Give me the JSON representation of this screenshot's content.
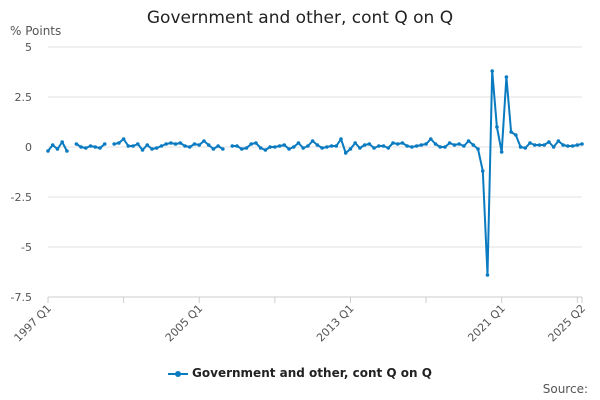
{
  "chart_data": {
    "type": "line",
    "title": "Government and other, cont Q on Q",
    "ylabel": "% Points",
    "xlabel": "",
    "x_start": "1997 Q1",
    "x_end": "2025 Q2",
    "frequency": "quarterly",
    "x_tick_labels": [
      "1997 Q1",
      "2005 Q1",
      "2013 Q1",
      "2021 Q1",
      "2025 Q2"
    ],
    "y_tick_labels": [
      "5",
      "2.5",
      "0",
      "-2.5",
      "-5",
      "-7.5"
    ],
    "ylim": [
      -7.5,
      5
    ],
    "grid": "horizontal",
    "legend_position": "bottom",
    "color": "#0a7bc1",
    "series": [
      {
        "name": "Government and other, cont Q on Q",
        "values": [
          -0.2,
          0.1,
          -0.1,
          0.25,
          -0.2,
          null,
          0.15,
          0,
          -0.05,
          0.05,
          0,
          -0.05,
          0.15,
          null,
          0.15,
          0.2,
          0.4,
          0.05,
          0.05,
          0.15,
          -0.15,
          0.1,
          -0.1,
          -0.05,
          0.05,
          0.15,
          0.2,
          0.15,
          0.2,
          0.05,
          0,
          0.15,
          0.1,
          0.3,
          0.1,
          -0.1,
          0.05,
          -0.1,
          null,
          0.05,
          0.05,
          -0.1,
          -0.05,
          0.15,
          0.2,
          -0.05,
          -0.15,
          0,
          0,
          0.05,
          0.1,
          -0.1,
          0,
          0.2,
          -0.05,
          0.05,
          0.3,
          0.1,
          -0.05,
          0,
          0.05,
          0.05,
          0.4,
          -0.3,
          -0.1,
          0.2,
          -0.05,
          0.1,
          0.15,
          -0.05,
          0.05,
          0.05,
          -0.05,
          0.2,
          0.15,
          0.2,
          0.05,
          0,
          0.05,
          0.1,
          0.15,
          0.4,
          0.15,
          0,
          0,
          0.2,
          0.1,
          0.15,
          0.05,
          0.3,
          0.1,
          -0.1,
          -1.2,
          -6.4,
          3.8,
          1.0,
          -0.25,
          3.5,
          0.75,
          0.6,
          0,
          -0.05,
          0.2,
          0.1,
          0.1,
          0.1,
          0.25,
          0,
          0.3,
          0.1,
          0.05,
          0.05,
          0.1,
          0.15
        ]
      }
    ]
  },
  "source_label": "Source:"
}
